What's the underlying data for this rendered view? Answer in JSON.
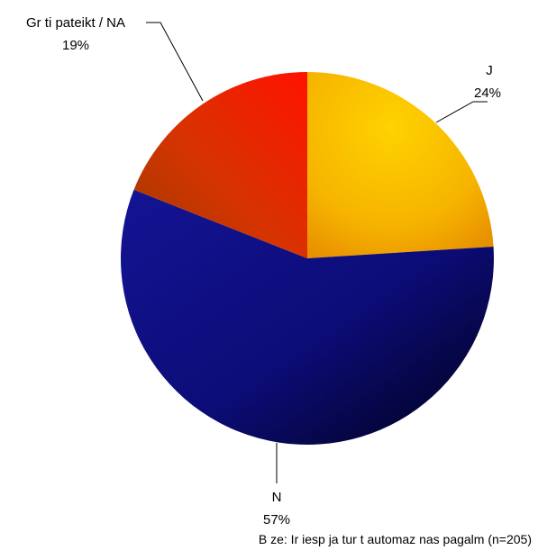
{
  "chart_data": {
    "type": "pie",
    "slices": [
      {
        "label": "J",
        "percent_label": "24%",
        "value": 24,
        "color": "#f6b400",
        "highlight": "#ffd200",
        "shade": "#e67000"
      },
      {
        "label": "N",
        "percent_label": "57%",
        "value": 57,
        "color": "#0c0c78",
        "highlight": "#1a1a9a",
        "shade": "#000022"
      },
      {
        "label": "Gr ti pateikt / NA",
        "percent_label": "19%",
        "value": 19,
        "color": "#dc2a00",
        "highlight": "#ff1a00",
        "shade": "#a83000"
      }
    ],
    "footnote": "B ze: Ir iesp ja tur t automaz nas pagalm (n=205)",
    "legend": "none"
  }
}
